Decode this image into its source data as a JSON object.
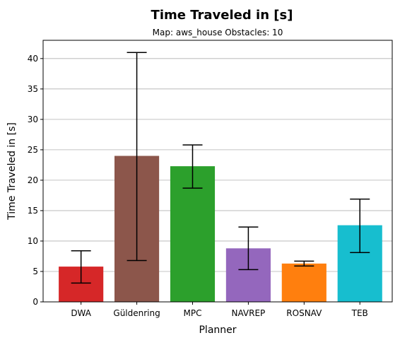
{
  "chart_data": {
    "type": "bar",
    "title": "Time Traveled in [s]",
    "subtitle": "Map: aws_house Obstacles: 10",
    "xlabel": "Planner",
    "ylabel": "Time Traveled in [s]",
    "categories": [
      "DWA",
      "Güldenring",
      "MPC",
      "NAVREP",
      "ROSNAV",
      "TEB"
    ],
    "values": [
      5.8,
      24.0,
      22.3,
      8.8,
      6.3,
      12.6
    ],
    "error_low": [
      3.1,
      6.8,
      18.7,
      5.3,
      5.9,
      8.1
    ],
    "error_high": [
      8.4,
      41.0,
      25.8,
      12.3,
      6.7,
      16.9
    ],
    "colors": [
      "#d62728",
      "#8c564b",
      "#2ca02c",
      "#9467bd",
      "#ff7f0e",
      "#17becf"
    ],
    "ylim": [
      0,
      43
    ],
    "yticks": [
      0,
      5,
      10,
      15,
      20,
      25,
      30,
      35,
      40
    ],
    "grid": "horizontal"
  }
}
